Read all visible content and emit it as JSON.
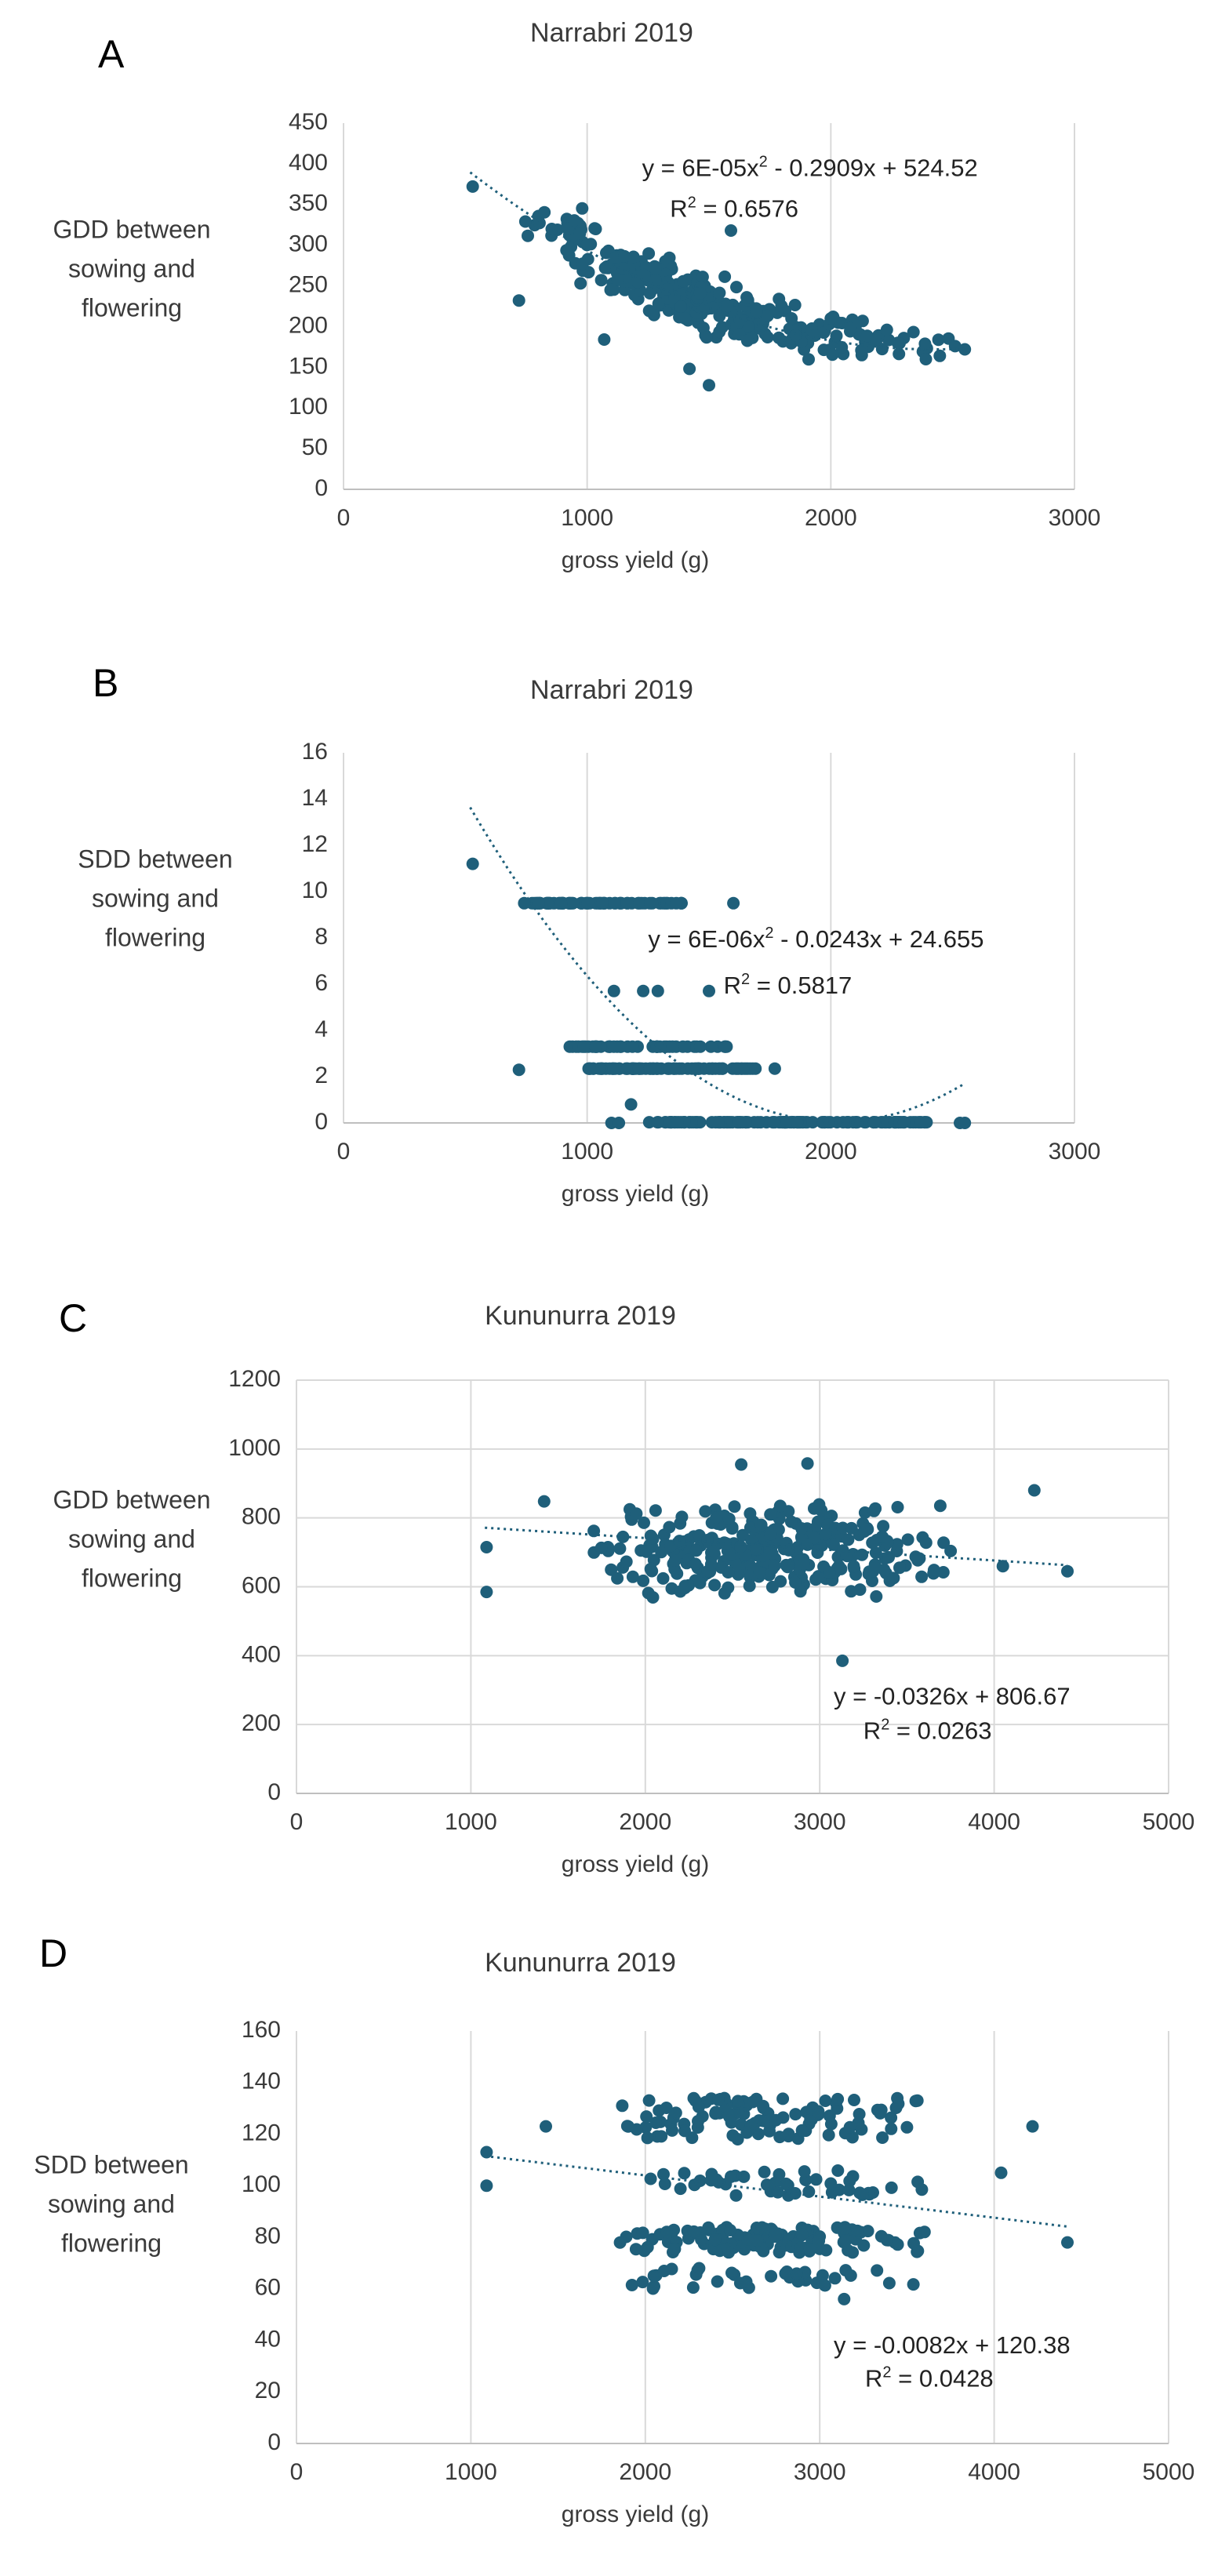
{
  "figure": {
    "colors": {
      "marker": "#1f5f7a",
      "grid": "#d9d9d9",
      "text": "#3a3a3a",
      "trend": "#1f5f7a"
    }
  },
  "chart_data": [
    {
      "panel_label": "A",
      "type": "scatter",
      "title": "Narrabri 2019",
      "xlabel": "gross yield (g)",
      "ylabel": [
        "GDD between",
        "sowing and",
        "flowering"
      ],
      "xlim": [
        0,
        3000
      ],
      "ylim": [
        0,
        450
      ],
      "xticks": [
        0,
        1000,
        2000,
        3000
      ],
      "yticks": [
        0,
        50,
        100,
        150,
        200,
        250,
        300,
        350,
        400,
        450
      ],
      "grid": "vertical",
      "trendline": {
        "kind": "poly2",
        "coef": [
          6e-05,
          -0.2909,
          524.52
        ],
        "xrange": [
          520,
          2550
        ]
      },
      "equation": {
        "prefix": "y = 6E-05x",
        "sup": "2",
        "suffix": " - 0.2909x + 524.52",
        "at": [
          1225,
          385
        ]
      },
      "r2": {
        "text": "R",
        "sup": "2",
        "rest": " = 0.6576",
        "at": [
          1340,
          335
        ]
      },
      "gen": {
        "n": 330,
        "seed": 11,
        "xmin": 700,
        "xmax": 2500,
        "xmode": 1300,
        "noise": 28,
        "quant": 0,
        "ymin": 125,
        "ymax": 362
      },
      "extra_points": [
        [
          530,
          372
        ],
        [
          720,
          232
        ],
        [
          1420,
          148
        ],
        [
          1500,
          128
        ],
        [
          2230,
          196
        ],
        [
          2390,
          160
        ],
        [
          2510,
          176
        ],
        [
          2550,
          172
        ],
        [
          1590,
          318
        ],
        [
          1070,
          184
        ],
        [
          2000,
          210
        ]
      ]
    },
    {
      "panel_label": "B",
      "type": "scatter",
      "title": "Narrabri 2019",
      "xlabel": "gross yield (g)",
      "ylabel": [
        "SDD between",
        "sowing and",
        "flowering"
      ],
      "xlim": [
        0,
        3000
      ],
      "ylim": [
        0,
        16
      ],
      "xticks": [
        0,
        1000,
        2000,
        3000
      ],
      "yticks": [
        0,
        2,
        4,
        6,
        8,
        10,
        12,
        14,
        16
      ],
      "grid": "vertical",
      "trendline": {
        "kind": "poly2",
        "coef": [
          6e-06,
          -0.0243,
          24.655
        ],
        "xrange": [
          520,
          2550
        ]
      },
      "equation": {
        "prefix": "y = 6E-06x",
        "sup": "2",
        "suffix": " - 0.0243x + 24.655",
        "at": [
          1250,
          7.6
        ]
      },
      "r2": {
        "text": "R",
        "sup": "2",
        "rest": " = 0.5817",
        "at": [
          1560,
          5.6
        ]
      },
      "rows": [
        {
          "y": 9.5,
          "xmin": 740,
          "xmax": 1400,
          "n": 70
        },
        {
          "y": 3.3,
          "xmin": 900,
          "xmax": 1580,
          "n": 45
        },
        {
          "y": 2.35,
          "xmin": 1000,
          "xmax": 1700,
          "n": 80
        },
        {
          "y": 0.03,
          "xmin": 1250,
          "xmax": 2400,
          "n": 130
        }
      ],
      "extra_points": [
        [
          530,
          11.2
        ],
        [
          720,
          2.3
        ],
        [
          1110,
          5.7
        ],
        [
          1230,
          5.7
        ],
        [
          1290,
          5.7
        ],
        [
          1500,
          5.7
        ],
        [
          1600,
          9.5
        ],
        [
          1180,
          0.8
        ],
        [
          1770,
          2.35
        ],
        [
          2530,
          0
        ],
        [
          2550,
          0
        ],
        [
          1100,
          0
        ],
        [
          1130,
          0
        ]
      ]
    },
    {
      "panel_label": "C",
      "type": "scatter",
      "title": "Kununurra 2019",
      "xlabel": "gross yield (g)",
      "ylabel": [
        "GDD between",
        "sowing and",
        "flowering"
      ],
      "xlim": [
        0,
        5000
      ],
      "ylim": [
        0,
        1200
      ],
      "xticks": [
        0,
        1000,
        2000,
        3000,
        4000,
        5000
      ],
      "yticks": [
        0,
        200,
        400,
        600,
        800,
        1000,
        1200
      ],
      "grid": "both",
      "trendline": {
        "kind": "linear",
        "coef": [
          -0.0326,
          806.67
        ],
        "xrange": [
          1080,
          4420
        ]
      },
      "equation": {
        "prefix": "y = -0.0326x + 806.67",
        "sup": "",
        "suffix": "",
        "at": [
          3080,
          258
        ]
      },
      "r2": {
        "text": "R",
        "sup": "2",
        "rest": " = 0.0263",
        "at": [
          3250,
          158
        ]
      },
      "gen": {
        "n": 320,
        "seed": 23,
        "xmin": 1600,
        "xmax": 3850,
        "xmode": 2700,
        "ycenter": 705,
        "yspread": 240,
        "ymin": 480,
        "ymax": 955
      },
      "extra_points": [
        [
          1090,
          715
        ],
        [
          1090,
          585
        ],
        [
          4420,
          645
        ],
        [
          4230,
          880
        ],
        [
          3130,
          385
        ],
        [
          2550,
          955
        ],
        [
          2930,
          958
        ],
        [
          1420,
          848
        ],
        [
          4050,
          660
        ]
      ]
    },
    {
      "panel_label": "D",
      "type": "scatter",
      "title": "Kununurra 2019",
      "xlabel": "gross yield (g)",
      "ylabel": [
        "SDD between",
        "sowing and",
        "flowering"
      ],
      "xlim": [
        0,
        5000
      ],
      "ylim": [
        0,
        160
      ],
      "xticks": [
        0,
        1000,
        2000,
        3000,
        4000,
        5000
      ],
      "yticks": [
        0,
        20,
        40,
        60,
        80,
        100,
        120,
        140,
        160
      ],
      "grid": "vertical",
      "trendline": {
        "kind": "linear",
        "coef": [
          -0.0082,
          120.38
        ],
        "xrange": [
          1080,
          4420
        ]
      },
      "equation": {
        "prefix": "y = -0.0082x + 120.38",
        "sup": "",
        "suffix": "",
        "at": [
          3080,
          35
        ]
      },
      "r2": {
        "text": "R",
        "sup": "2",
        "rest": " = 0.0428",
        "at": [
          3260,
          22
        ]
      },
      "bands": [
        {
          "ylo": 118,
          "yhi": 134,
          "n": 110
        },
        {
          "ylo": 96,
          "yhi": 106,
          "n": 45
        },
        {
          "ylo": 74,
          "yhi": 84,
          "n": 120
        },
        {
          "ylo": 60,
          "yhi": 68,
          "n": 35
        }
      ],
      "gen": {
        "seed": 37,
        "xmin": 1700,
        "xmax": 3800,
        "xmode": 2700
      },
      "extra_points": [
        [
          1090,
          113
        ],
        [
          1090,
          100
        ],
        [
          4420,
          78
        ],
        [
          4220,
          123
        ],
        [
          3140,
          56
        ],
        [
          4040,
          105
        ],
        [
          1430,
          123
        ],
        [
          3560,
          133
        ]
      ]
    }
  ]
}
